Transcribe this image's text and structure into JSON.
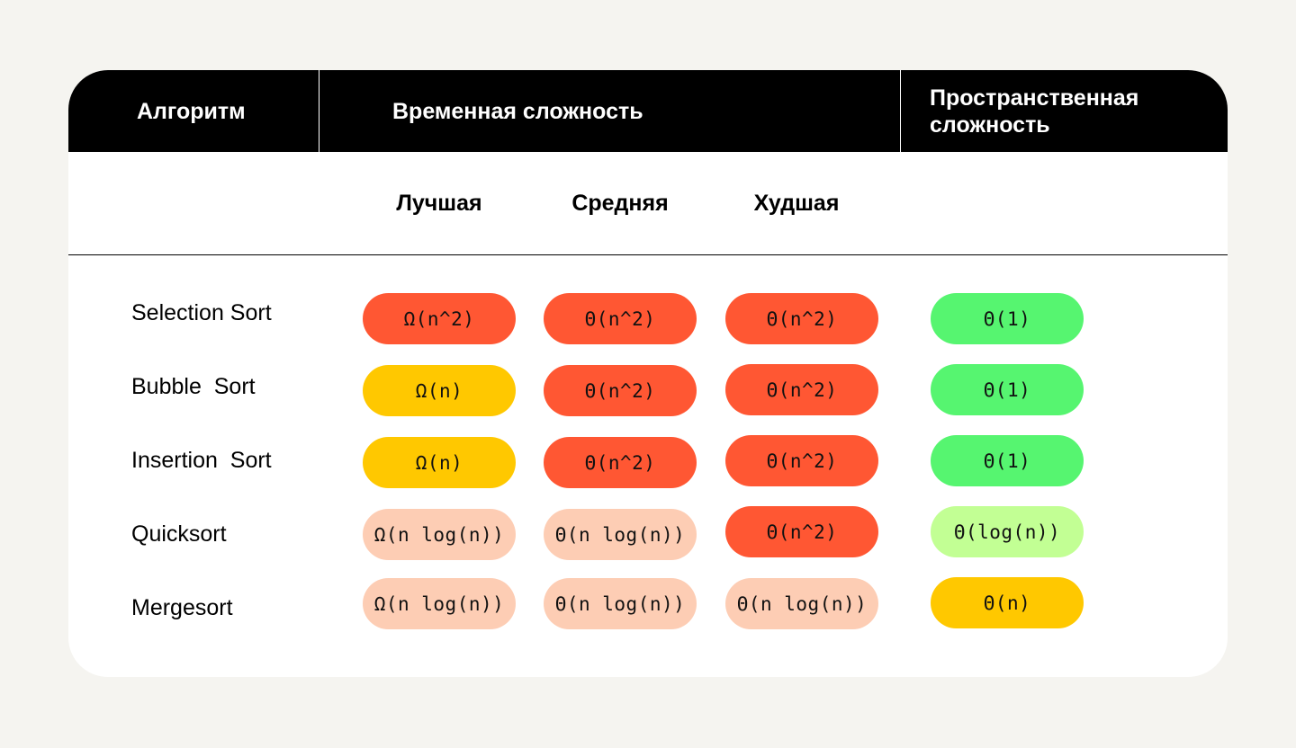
{
  "header": {
    "algorithm": "Алгоритм",
    "time_complexity": "Временная сложность",
    "space_complexity": "Пространственная сложность"
  },
  "subheader": {
    "best": "Лучшая",
    "average": "Средняя",
    "worst": "Худшая"
  },
  "rows": [
    {
      "name": "Selection Sort",
      "best": {
        "text": "Ω(n^2)",
        "color": "#ff5733"
      },
      "average": {
        "text": "Θ(n^2)",
        "color": "#ff5733"
      },
      "worst": {
        "text": "Θ(n^2)",
        "color": "#ff5733"
      },
      "space": {
        "text": "Θ(1)",
        "color": "#56f570"
      }
    },
    {
      "name": "Bubble  Sort",
      "best": {
        "text": "Ω(n)",
        "color": "#ffc800"
      },
      "average": {
        "text": "Θ(n^2)",
        "color": "#ff5733"
      },
      "worst": {
        "text": "Θ(n^2)",
        "color": "#ff5733"
      },
      "space": {
        "text": "Θ(1)",
        "color": "#56f570"
      }
    },
    {
      "name": "Insertion  Sort",
      "best": {
        "text": "Ω(n)",
        "color": "#ffc800"
      },
      "average": {
        "text": "Θ(n^2)",
        "color": "#ff5733"
      },
      "worst": {
        "text": "Θ(n^2)",
        "color": "#ff5733"
      },
      "space": {
        "text": "Θ(1)",
        "color": "#56f570"
      }
    },
    {
      "name": "Quicksort",
      "best": {
        "text": "Ω(n log(n))",
        "color": "#fdcdb4"
      },
      "average": {
        "text": "Θ(n log(n))",
        "color": "#fdcdb4"
      },
      "worst": {
        "text": "Θ(n^2)",
        "color": "#ff5733"
      },
      "space": {
        "text": "Θ(log(n))",
        "color": "#c2ff94"
      }
    },
    {
      "name": "Mergesort",
      "best": {
        "text": "Ω(n log(n))",
        "color": "#fdcdb4"
      },
      "average": {
        "text": "Θ(n log(n))",
        "color": "#fdcdb4"
      },
      "worst": {
        "text": "Θ(n log(n))",
        "color": "#fdcdb4"
      },
      "space": {
        "text": "Θ(n)",
        "color": "#ffc800"
      }
    }
  ]
}
